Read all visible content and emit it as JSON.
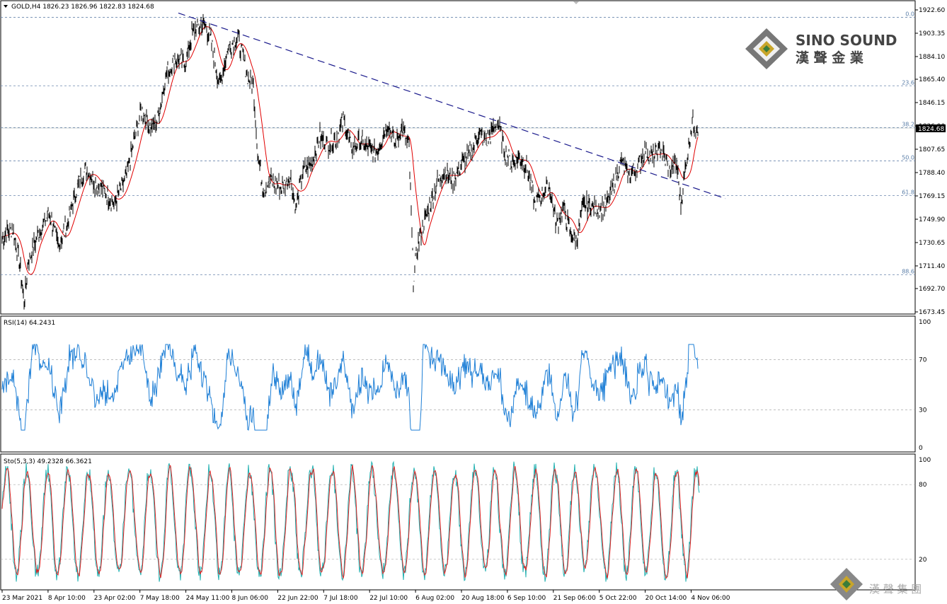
{
  "header": {
    "symbol_info": "GOLD,H4  1826.23 1826.96 1822.83 1824.68",
    "rsi_info": "RSI(14) 64.2431",
    "sto_info": "Sto(5,3,3) 49.2328 66.3621"
  },
  "price_panel": {
    "y_ticks": [
      "1922.60",
      "1903.35",
      "1884.10",
      "1865.40",
      "1846.15",
      "1826.90",
      "1807.65",
      "1788.40",
      "1769.15",
      "1749.90",
      "1730.65",
      "1711.40",
      "1692.70",
      "1673.45"
    ],
    "y_tick_values": [
      1922.6,
      1903.35,
      1884.1,
      1865.4,
      1846.15,
      1826.9,
      1807.65,
      1788.4,
      1769.15,
      1749.9,
      1730.65,
      1711.4,
      1692.7,
      1673.45
    ],
    "current_price": "1824.68",
    "ylim": [
      1669.0,
      1927.0
    ],
    "fib_levels": [
      {
        "label": "0.0",
        "price": 1916.5
      },
      {
        "label": "23.6",
        "price": 1860.0
      },
      {
        "label": "38.2",
        "price": 1825.5
      },
      {
        "label": "50.0",
        "price": 1798.0
      },
      {
        "label": "61.8",
        "price": 1769.5
      },
      {
        "label": "88.6",
        "price": 1704.0
      }
    ],
    "colors": {
      "price": "#000000",
      "ma": "#e00000",
      "trendline": "#1a1a8c",
      "fib": "#6a86ad",
      "current_box": "#000000"
    }
  },
  "rsi_panel": {
    "y_ticks": [
      "100",
      "70",
      "30",
      "0"
    ],
    "levels": [
      70,
      30
    ],
    "color": "#1e7fd6"
  },
  "sto_panel": {
    "y_ticks": [
      "100",
      "80",
      "20"
    ],
    "levels": [
      80,
      20
    ],
    "colors": {
      "main": "#20b0b0",
      "signal": "#e02020"
    }
  },
  "x_axis": {
    "labels": [
      "23 Mar 2021",
      "8 Apr 10:00",
      "23 Apr 02:00",
      "7 May 18:00",
      "24 May 11:00",
      "8 Jun 06:00",
      "22 Jun 22:00",
      "7 Jul 18:00",
      "22 Jul 10:00",
      "6 Aug 02:00",
      "20 Aug 18:00",
      "6 Sep 10:00",
      "21 Sep 06:00",
      "5 Oct 22:00",
      "20 Oct 14:00",
      "4 Nov 06:00"
    ]
  },
  "logo": {
    "name": "SINO SOUND",
    "chinese": "漢 聲 金 業",
    "footer_chinese": "漢 聲 集 團"
  },
  "chart_data": {
    "type": "line",
    "title": "GOLD,H4",
    "ohlc_last": {
      "open": 1826.23,
      "high": 1826.96,
      "low": 1822.83,
      "close": 1824.68
    },
    "timeframe": "H4",
    "x": [
      "23 Mar 2021",
      "8 Apr 10:00",
      "23 Apr 02:00",
      "7 May 18:00",
      "24 May 11:00",
      "8 Jun 06:00",
      "22 Jun 22:00",
      "7 Jul 18:00",
      "22 Jul 10:00",
      "6 Aug 02:00",
      "20 Aug 18:00",
      "6 Sep 10:00",
      "21 Sep 06:00",
      "5 Oct 22:00",
      "20 Oct 14:00",
      "4 Nov 06:00"
    ],
    "series": [
      {
        "name": "GOLD",
        "values": [
          1735,
          1752,
          1780,
          1830,
          1900,
          1880,
          1780,
          1825,
          1800,
          1750,
          1820,
          1800,
          1760,
          1770,
          1795,
          1824.68
        ]
      },
      {
        "name": "RSI(14)",
        "values": [
          45,
          55,
          60,
          70,
          75,
          50,
          35,
          65,
          55,
          25,
          65,
          50,
          40,
          60,
          55,
          64.24
        ]
      },
      {
        "name": "Sto(5,3,3)",
        "values": [
          50,
          60,
          70,
          80,
          90,
          40,
          20,
          70,
          60,
          15,
          75,
          50,
          30,
          60,
          55,
          49.23
        ]
      }
    ],
    "fibonacci": [
      {
        "level": "0.0",
        "price": 1916.5
      },
      {
        "level": "23.6",
        "price": 1860.0
      },
      {
        "level": "38.2",
        "price": 1825.5
      },
      {
        "level": "50.0",
        "price": 1798.0
      },
      {
        "level": "61.8",
        "price": 1769.5
      },
      {
        "level": "88.6",
        "price": 1704.0
      }
    ],
    "trendline": [
      {
        "x": "13 May",
        "price": 1920
      },
      {
        "x": "12 Nov",
        "price": 1767
      }
    ],
    "indicator_levels": {
      "rsi": [
        70,
        30
      ],
      "sto": [
        80,
        20
      ]
    },
    "ylim": [
      1673.45,
      1922.6
    ]
  }
}
